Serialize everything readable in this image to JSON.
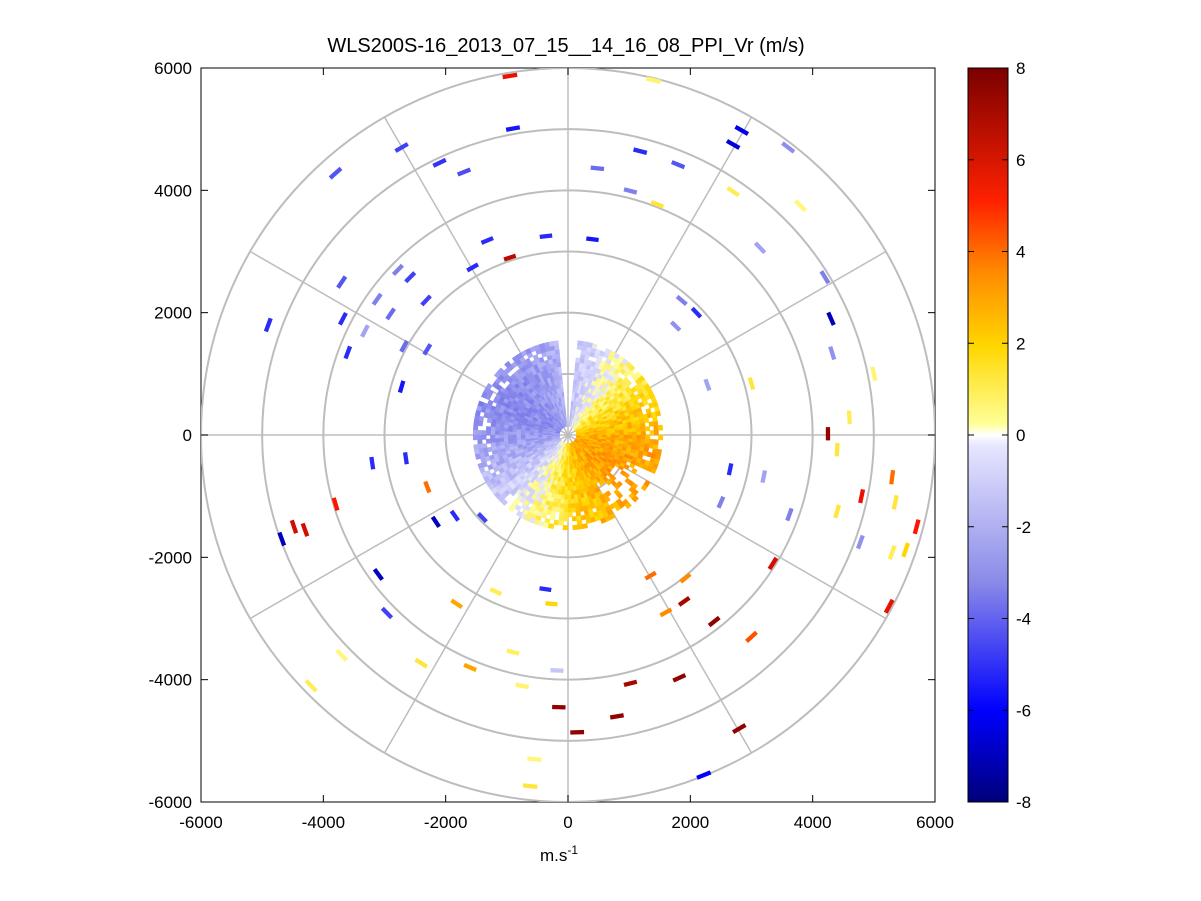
{
  "chart_data": {
    "type": "heatmap",
    "title": "WLS200S-16_2013_07_15__14_16_08_PPI_Vr (m/s)",
    "xlabel_main": "m.s",
    "xlabel_sup": "-1",
    "ylabel": "",
    "xlim": [
      -6000,
      6000
    ],
    "ylim": [
      -6000,
      6000
    ],
    "xticks": [
      "-6000",
      "-4000",
      "-2000",
      "0",
      "2000",
      "4000",
      "6000"
    ],
    "yticks": [
      "6000",
      "4000",
      "2000",
      "0",
      "-2000",
      "-4000",
      "-6000"
    ],
    "polar_rings_m": [
      1000,
      2000,
      3000,
      4000,
      5000,
      6000
    ],
    "polar_spokes_deg": [
      0,
      30,
      60,
      90,
      120,
      150,
      180,
      210,
      240,
      270,
      300,
      330
    ],
    "grid": true,
    "colorbar": {
      "range": [
        -8,
        8
      ],
      "ticks": [
        "8",
        "6",
        "4",
        "2",
        "0",
        "-2",
        "-4",
        "-6",
        "-8"
      ],
      "colormap": [
        "#00007a",
        "#0000ff",
        "#8a8ae8",
        "#e6e6ff",
        "#ffff99",
        "#ffd700",
        "#ff8c00",
        "#ff0000",
        "#7a0000"
      ]
    },
    "near_field": {
      "radius_m": 1550,
      "negative_sector": "west/north-west",
      "positive_sector": "south-east"
    },
    "cells": [
      {
        "x": -950,
        "y": 5870,
        "v": 5.5
      },
      {
        "x": 1400,
        "y": 5800,
        "v": 0.6
      },
      {
        "x": -900,
        "y": 5010,
        "v": -5.5
      },
      {
        "x": 2840,
        "y": 4980,
        "v": -6.3
      },
      {
        "x": 3600,
        "y": 4700,
        "v": -2.6
      },
      {
        "x": 2700,
        "y": 4750,
        "v": -6.5
      },
      {
        "x": -2720,
        "y": 4700,
        "v": -4.5
      },
      {
        "x": -3800,
        "y": 4280,
        "v": -4.0
      },
      {
        "x": 1180,
        "y": 4640,
        "v": -5.0
      },
      {
        "x": 1800,
        "y": 4420,
        "v": -4.0
      },
      {
        "x": -2100,
        "y": 4450,
        "v": -4.8
      },
      {
        "x": -1700,
        "y": 4300,
        "v": -4.2
      },
      {
        "x": 480,
        "y": 4360,
        "v": -3.5
      },
      {
        "x": 2700,
        "y": 3980,
        "v": 0.8
      },
      {
        "x": 3800,
        "y": 3750,
        "v": 0.5
      },
      {
        "x": 1020,
        "y": 3990,
        "v": -3.0
      },
      {
        "x": 1460,
        "y": 3770,
        "v": 1.0
      },
      {
        "x": -1320,
        "y": 3180,
        "v": -5.0
      },
      {
        "x": -360,
        "y": 3250,
        "v": -5.0
      },
      {
        "x": 400,
        "y": 3200,
        "v": -5.5
      },
      {
        "x": 3140,
        "y": 3060,
        "v": -2.0
      },
      {
        "x": -950,
        "y": 2900,
        "v": 6.5
      },
      {
        "x": -1560,
        "y": 2740,
        "v": -5.0
      },
      {
        "x": -2780,
        "y": 2700,
        "v": -3.0
      },
      {
        "x": -3700,
        "y": 2500,
        "v": -4.0
      },
      {
        "x": -2580,
        "y": 2580,
        "v": -4.5
      },
      {
        "x": -3120,
        "y": 2220,
        "v": -3.0
      },
      {
        "x": 4200,
        "y": 2580,
        "v": -3.0
      },
      {
        "x": 1860,
        "y": 2200,
        "v": -3.0
      },
      {
        "x": 2100,
        "y": 2000,
        "v": -5.0
      },
      {
        "x": -4900,
        "y": 1800,
        "v": -5.0
      },
      {
        "x": 4300,
        "y": 1900,
        "v": -7.0
      },
      {
        "x": -3680,
        "y": 1900,
        "v": -5.0
      },
      {
        "x": -2900,
        "y": 1980,
        "v": -3.5
      },
      {
        "x": -2320,
        "y": 2200,
        "v": -4.5
      },
      {
        "x": -3320,
        "y": 1700,
        "v": -2.0
      },
      {
        "x": -3600,
        "y": 1350,
        "v": -5.0
      },
      {
        "x": 1760,
        "y": 1780,
        "v": -2.5
      },
      {
        "x": -2300,
        "y": 1400,
        "v": -4.0
      },
      {
        "x": -2680,
        "y": 1450,
        "v": -3.5
      },
      {
        "x": 5000,
        "y": 1000,
        "v": 0.6
      },
      {
        "x": 3000,
        "y": 840,
        "v": 1.0
      },
      {
        "x": -2720,
        "y": 790,
        "v": -5.5
      },
      {
        "x": 2280,
        "y": 820,
        "v": -2.0
      },
      {
        "x": 4320,
        "y": 1340,
        "v": -2.5
      },
      {
        "x": 4600,
        "y": 290,
        "v": 0.8
      },
      {
        "x": 4250,
        "y": 20,
        "v": 7.5
      },
      {
        "x": 4400,
        "y": -240,
        "v": 1.0
      },
      {
        "x": -3200,
        "y": -460,
        "v": -5.0
      },
      {
        "x": -2650,
        "y": -380,
        "v": -5.0
      },
      {
        "x": 5300,
        "y": -690,
        "v": 3.5
      },
      {
        "x": 3200,
        "y": -680,
        "v": -2.0
      },
      {
        "x": 2650,
        "y": -560,
        "v": -5.0
      },
      {
        "x": 4800,
        "y": -1000,
        "v": 5.5
      },
      {
        "x": 5350,
        "y": -1100,
        "v": 1.0
      },
      {
        "x": 5700,
        "y": -1500,
        "v": 5.0
      },
      {
        "x": 5520,
        "y": -1880,
        "v": 1.5
      },
      {
        "x": 5300,
        "y": -1920,
        "v": 0.8
      },
      {
        "x": 3620,
        "y": -1300,
        "v": -3.0
      },
      {
        "x": 2500,
        "y": -1100,
        "v": -3.0
      },
      {
        "x": 4400,
        "y": -1250,
        "v": 1.0
      },
      {
        "x": 4780,
        "y": -1750,
        "v": -2.5
      },
      {
        "x": -3800,
        "y": -1130,
        "v": 5.0
      },
      {
        "x": -4480,
        "y": -1500,
        "v": 6.0
      },
      {
        "x": -4300,
        "y": -1550,
        "v": 6.0
      },
      {
        "x": -4680,
        "y": -1700,
        "v": -7.0
      },
      {
        "x": -2300,
        "y": -850,
        "v": 3.5
      },
      {
        "x": -2160,
        "y": -1420,
        "v": -7.0
      },
      {
        "x": -1850,
        "y": -1320,
        "v": -5.0
      },
      {
        "x": -1400,
        "y": -1350,
        "v": -4.5
      },
      {
        "x": -3100,
        "y": -2280,
        "v": -7.0
      },
      {
        "x": 3350,
        "y": -2100,
        "v": 6.0
      },
      {
        "x": 5250,
        "y": -2800,
        "v": 5.5
      },
      {
        "x": 1920,
        "y": -2340,
        "v": 3.0
      },
      {
        "x": 1350,
        "y": -2300,
        "v": 3.5
      },
      {
        "x": 1900,
        "y": -2720,
        "v": 7.0
      },
      {
        "x": 1600,
        "y": -2900,
        "v": 3.0
      },
      {
        "x": -1180,
        "y": -2560,
        "v": 0.8
      },
      {
        "x": -1820,
        "y": -2760,
        "v": 2.5
      },
      {
        "x": -2960,
        "y": -2910,
        "v": -4.5
      },
      {
        "x": -370,
        "y": -2520,
        "v": -5.0
      },
      {
        "x": -270,
        "y": -2760,
        "v": 1.5
      },
      {
        "x": 2390,
        "y": -3050,
        "v": 7.5
      },
      {
        "x": 3000,
        "y": -3300,
        "v": 4.0
      },
      {
        "x": 1820,
        "y": -3970,
        "v": 7.5
      },
      {
        "x": 1020,
        "y": -4060,
        "v": 7.0
      },
      {
        "x": -3700,
        "y": -3600,
        "v": 0.5
      },
      {
        "x": -2400,
        "y": -3730,
        "v": 1.0
      },
      {
        "x": -900,
        "y": -3550,
        "v": 0.7
      },
      {
        "x": -1600,
        "y": -3800,
        "v": 2.5
      },
      {
        "x": -180,
        "y": -3850,
        "v": -1.0
      },
      {
        "x": -4200,
        "y": -4100,
        "v": 0.8
      },
      {
        "x": -750,
        "y": -4100,
        "v": 0.6
      },
      {
        "x": -150,
        "y": -4450,
        "v": 7.5
      },
      {
        "x": 150,
        "y": -4860,
        "v": 7.5
      },
      {
        "x": 800,
        "y": -4600,
        "v": 7.5
      },
      {
        "x": 2800,
        "y": -4800,
        "v": 7.5
      },
      {
        "x": 2220,
        "y": -5560,
        "v": -6.0
      },
      {
        "x": -550,
        "y": -5300,
        "v": 0.5
      },
      {
        "x": -620,
        "y": -5740,
        "v": 1.0
      }
    ]
  }
}
